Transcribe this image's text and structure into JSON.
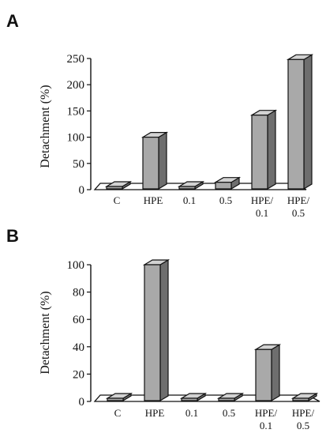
{
  "chart_data": [
    {
      "type": "bar",
      "panel_label": "A",
      "ylabel": "Detachment (%)",
      "ylim": [
        0,
        250
      ],
      "yticks": [
        0,
        50,
        100,
        150,
        200,
        250
      ],
      "categories": [
        {
          "line1": "C",
          "line2": ""
        },
        {
          "line1": "HPE",
          "line2": ""
        },
        {
          "line1": "0.1",
          "line2": ""
        },
        {
          "line1": "0.5",
          "line2": ""
        },
        {
          "line1": "HPE/",
          "line2": "0.1"
        },
        {
          "line1": "HPE/",
          "line2": "0.5"
        }
      ],
      "values": [
        0,
        100,
        0,
        14,
        142,
        248
      ],
      "grid": false
    },
    {
      "type": "bar",
      "panel_label": "B",
      "ylabel": "Detachment (%)",
      "ylim": [
        0,
        100
      ],
      "yticks": [
        0,
        20,
        40,
        60,
        80,
        100
      ],
      "categories": [
        {
          "line1": "C",
          "line2": ""
        },
        {
          "line1": "HPE",
          "line2": ""
        },
        {
          "line1": "0.1",
          "line2": ""
        },
        {
          "line1": "0.5",
          "line2": ""
        },
        {
          "line1": "HPE/",
          "line2": "0.1"
        },
        {
          "line1": "HPE/",
          "line2": "0.5"
        }
      ],
      "values": [
        0,
        100,
        0,
        0,
        38,
        0
      ],
      "grid": false
    }
  ],
  "colors": {
    "bar_front": "#a9a9a9",
    "bar_side": "#6e6e6e",
    "bar_top": "#d2d2d2",
    "floor": "#ffffff",
    "ink": "#111111"
  }
}
